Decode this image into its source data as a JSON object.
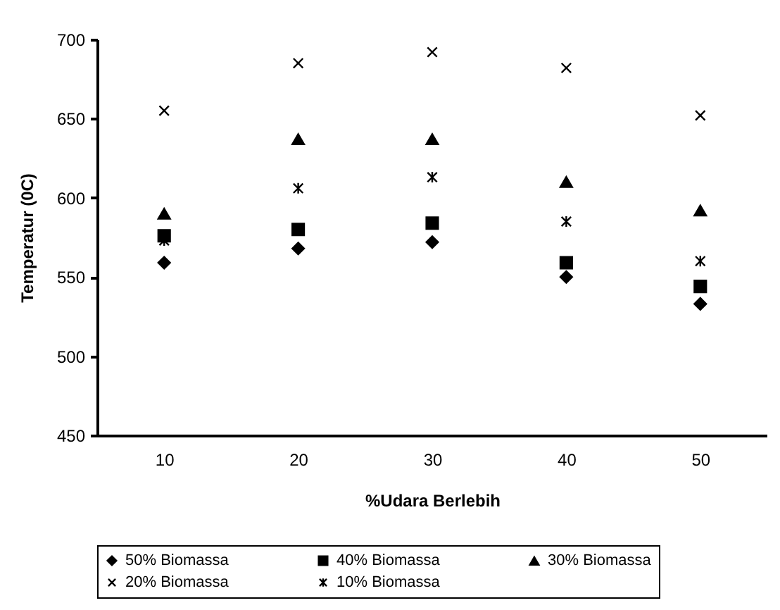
{
  "chart_data": {
    "type": "scatter",
    "xlabel": "%Udara Berlebih",
    "ylabel": "Temperatur (0C)",
    "categories": [
      "10",
      "20",
      "30",
      "40",
      "50"
    ],
    "ylim": [
      450,
      700
    ],
    "yticks": [
      450,
      500,
      550,
      600,
      650,
      700
    ],
    "grid": false,
    "legend": "bottom",
    "series": [
      {
        "name": "50% Biomassa",
        "color": "#000000",
        "marker": "diamond",
        "values": [
          559,
          568,
          572,
          550,
          533
        ]
      },
      {
        "name": "40% Biomassa",
        "color": "#000000",
        "marker": "square",
        "values": [
          576,
          580,
          584,
          559,
          544
        ]
      },
      {
        "name": "30% Biomassa",
        "color": "#000000",
        "marker": "triangle",
        "values": [
          590,
          637,
          637,
          610,
          592
        ]
      },
      {
        "name": "20% Biomassa",
        "color": "#000000",
        "marker": "cross",
        "values": [
          655,
          685,
          692,
          682,
          652
        ]
      },
      {
        "name": "10% Biomassa",
        "color": "#000000",
        "values": [
          573,
          606,
          613,
          585,
          560
        ]
      }
    ]
  }
}
